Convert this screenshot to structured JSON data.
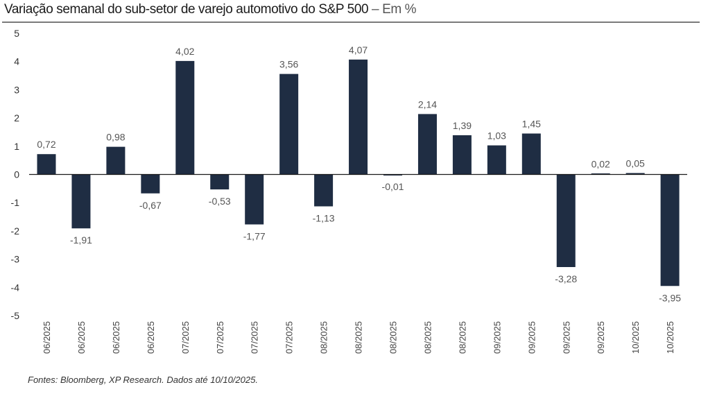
{
  "header": {
    "title": "Variação semanal do sub-setor de varejo automotivo do S&P 500",
    "title_suffix": " – Em %"
  },
  "footer": {
    "source": "Fontes: Bloomberg, XP Research. Dados até 10/10/2025."
  },
  "colors": {
    "bar": "#1f2d43",
    "axis": "#1a1a1a",
    "label": "#555555",
    "rule": "#7a7a7a"
  },
  "chart_data": {
    "type": "bar",
    "title": "Variação semanal do sub-setor de varejo automotivo do S&P 500 – Em %",
    "xlabel": "",
    "ylabel": "",
    "ylim": [
      -5,
      5
    ],
    "yticks": [
      "5",
      "4",
      "3",
      "2",
      "1",
      "0",
      "-1",
      "-2",
      "-3",
      "-4",
      "-5"
    ],
    "ytick_values": [
      5,
      4,
      3,
      2,
      1,
      0,
      -1,
      -2,
      -3,
      -4,
      -5
    ],
    "grid": false,
    "legend": "none",
    "categories": [
      "06/2025",
      "06/2025",
      "06/2025",
      "06/2025",
      "07/2025",
      "07/2025",
      "07/2025",
      "07/2025",
      "08/2025",
      "08/2025",
      "08/2025",
      "08/2025",
      "08/2025",
      "09/2025",
      "09/2025",
      "09/2025",
      "09/2025",
      "10/2025",
      "10/2025"
    ],
    "values": [
      0.72,
      -1.91,
      0.98,
      -0.67,
      4.02,
      -0.53,
      -1.77,
      3.56,
      -1.13,
      4.07,
      -0.01,
      2.14,
      1.39,
      1.03,
      1.45,
      -3.28,
      0.02,
      0.05,
      -3.95
    ],
    "data_labels": [
      "0,72",
      "-1,91",
      "0,98",
      "-0,67",
      "4,02",
      "-0,53",
      "-1,77",
      "3,56",
      "-1,13",
      "4,07",
      "-0,01",
      "2,14",
      "1,39",
      "1,03",
      "1,45",
      "-3,28",
      "0,02",
      "0,05",
      "-3,95"
    ]
  }
}
